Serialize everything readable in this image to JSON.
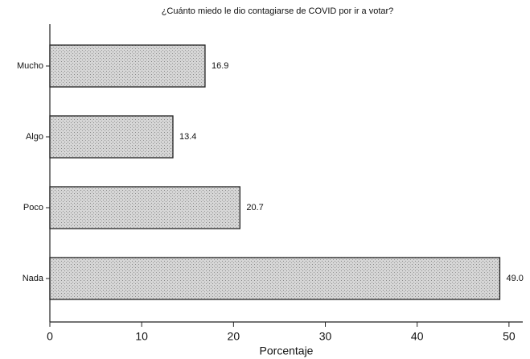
{
  "chart_data": {
    "type": "barh",
    "title": "¿Cuánto miedo le dio contagiarse de COVID por ir a votar?",
    "x_label": "Porcentaje",
    "categories": [
      "Mucho",
      "Algo",
      "Poco",
      "Nada"
    ],
    "values": [
      16.9,
      13.4,
      20.7,
      49.0
    ],
    "value_labels": [
      "16.9",
      "13.4",
      "20.7",
      "49.0"
    ],
    "color": "#c9c9c9",
    "xlim": [
      0,
      51.5
    ],
    "xticks": [
      0,
      10,
      20,
      30,
      40,
      50
    ],
    "grid": false
  }
}
